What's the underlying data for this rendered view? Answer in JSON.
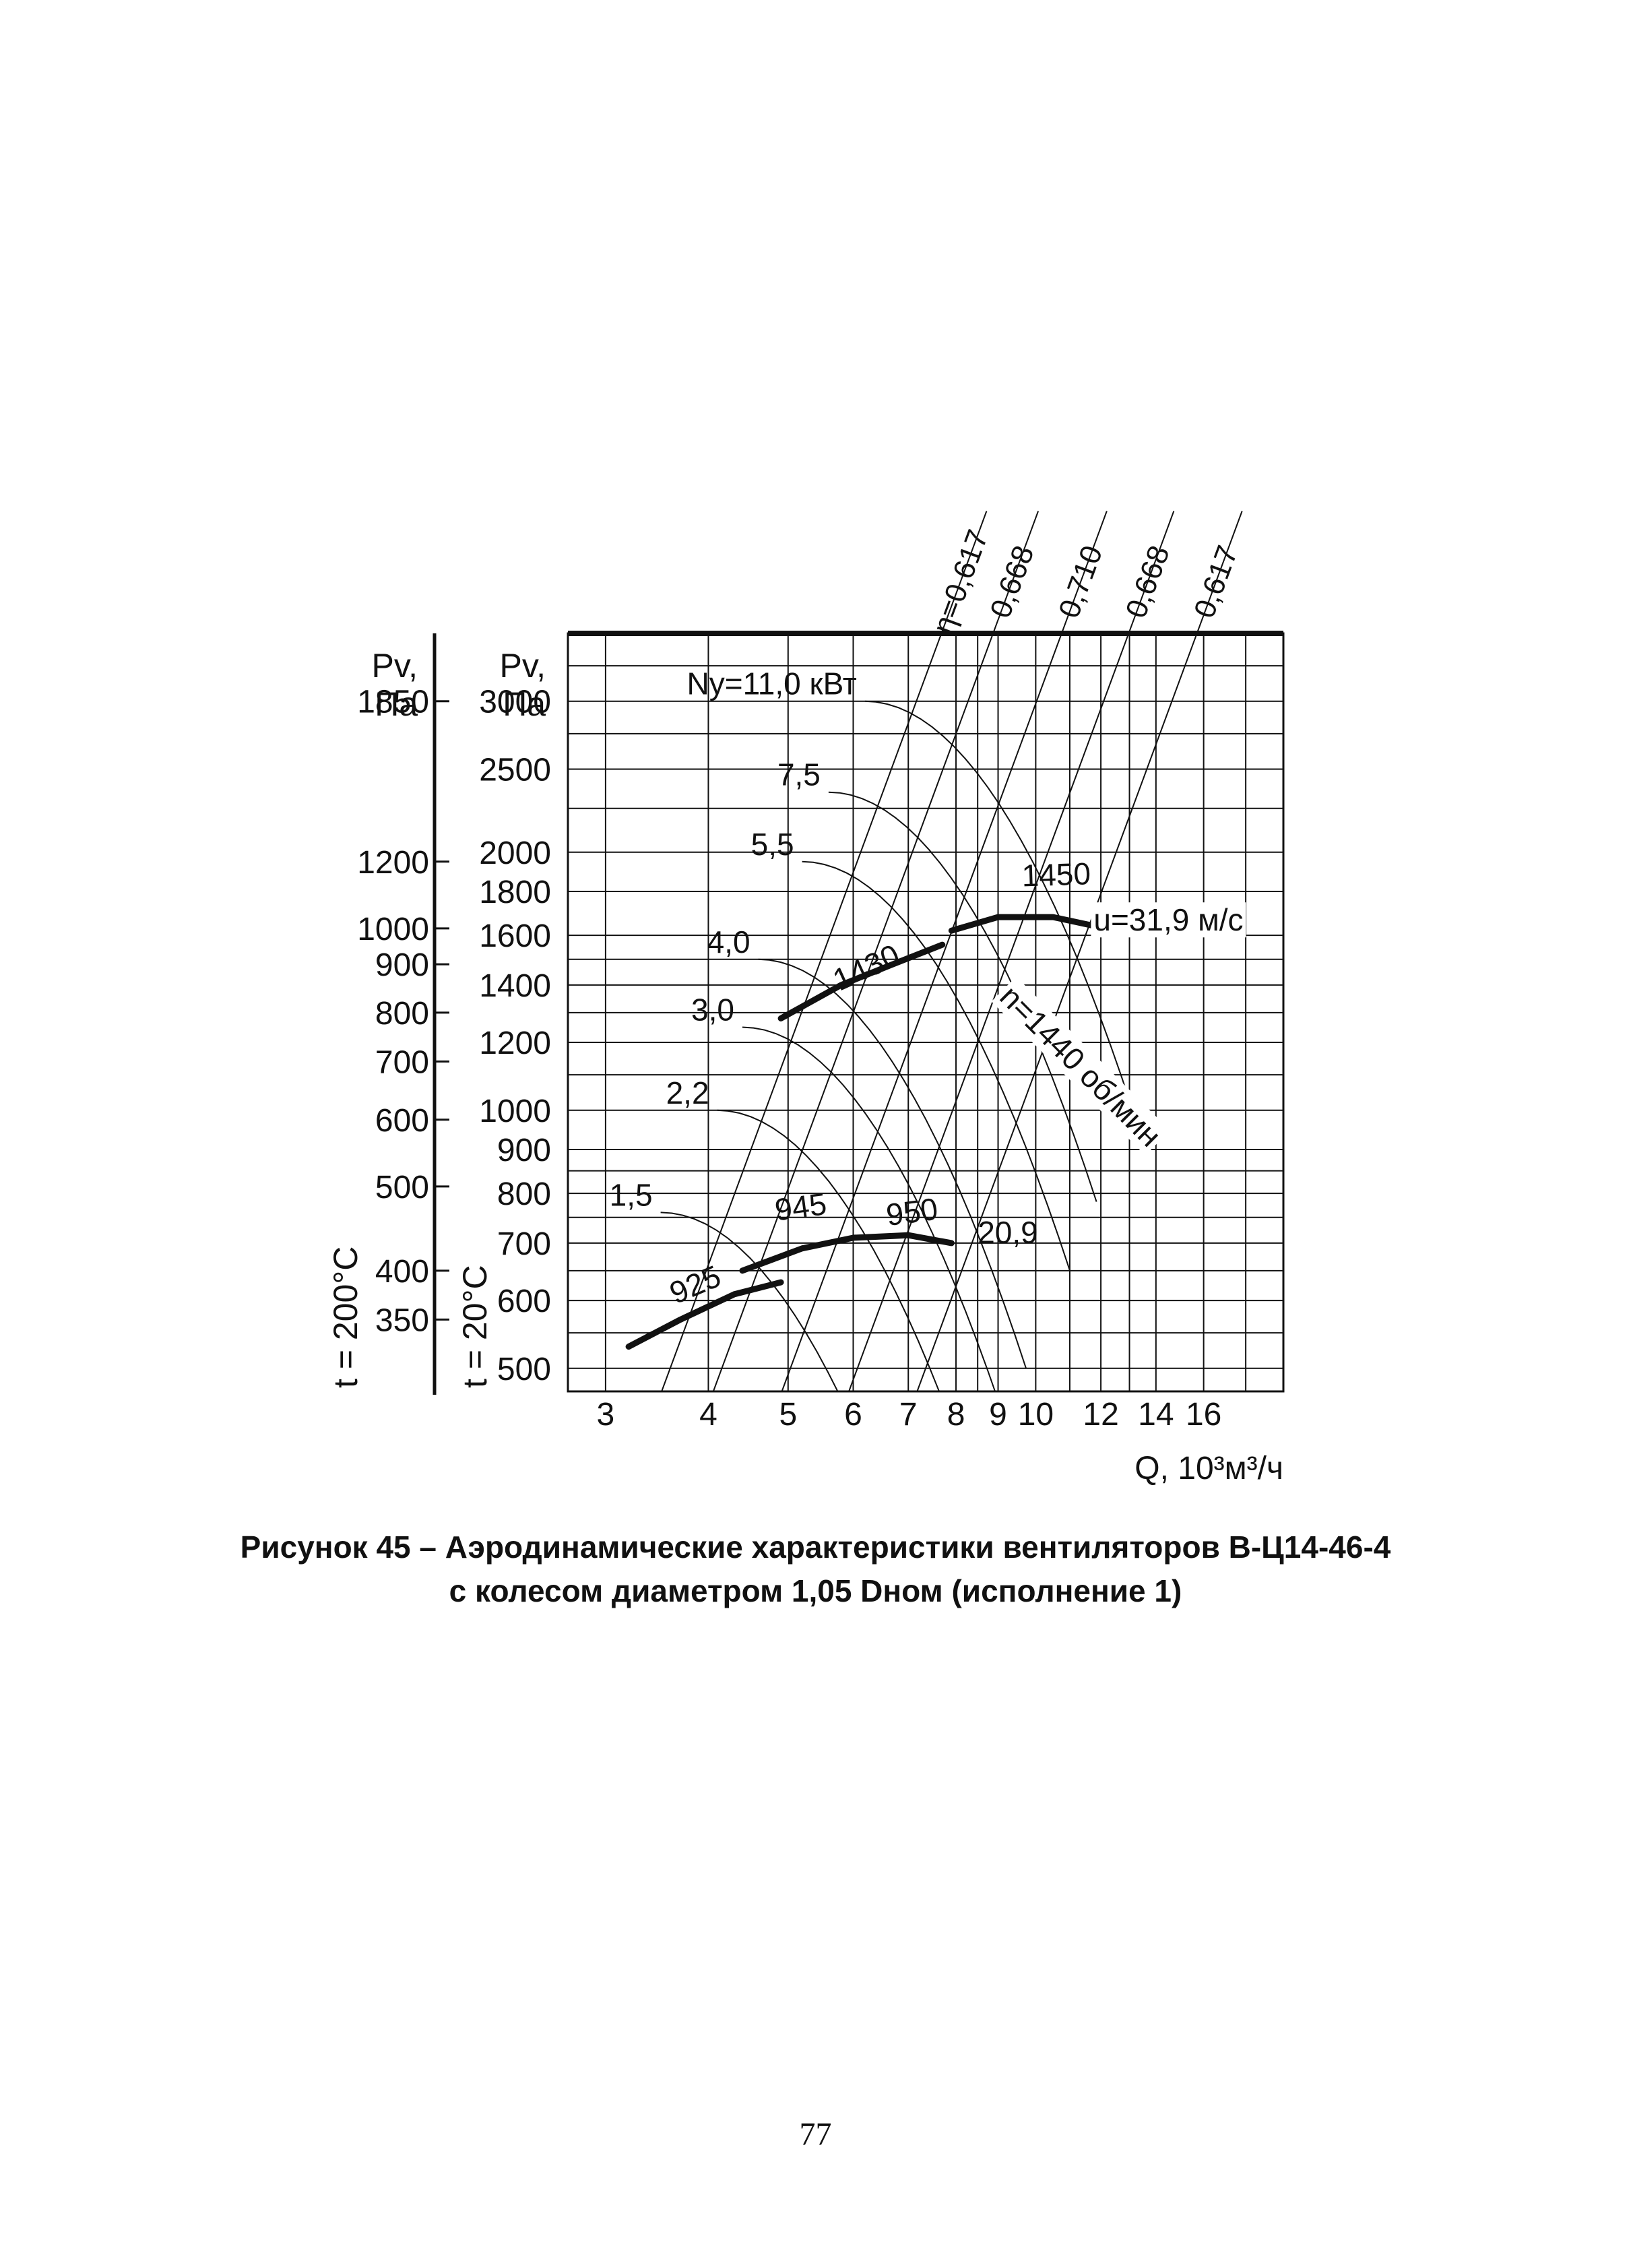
{
  "caption": {
    "line1": "Рисунок 45 – Аэродинамические характеристики вентиляторов В-Ц14-46-4",
    "line2": "с колесом диаметром 1,05 Dном (исполнение 1)"
  },
  "page_number": "77",
  "chart_data": {
    "type": "line",
    "xlabel": "Q, 10³м³/ч",
    "x_scale": "log",
    "y_scale": "log",
    "xlim": [
      2.7,
      20
    ],
    "ylim": [
      470,
      3600
    ],
    "x_ticks": [
      3,
      4,
      5,
      6,
      7,
      8,
      9,
      10,
      12,
      14,
      16
    ],
    "y_axis_20C": {
      "header": [
        "Pv,",
        "Па"
      ],
      "temp_label": "t = 20°C",
      "ticks": [
        500,
        600,
        700,
        800,
        900,
        1000,
        1200,
        1400,
        1600,
        1800,
        2000,
        2500,
        3000
      ]
    },
    "y_axis_200C": {
      "header": [
        "Pv,",
        "Па"
      ],
      "temp_label": "t = 200°C",
      "ticks": [
        {
          "label": "1850",
          "at": 3000
        },
        {
          "label": "1200",
          "at": 1950
        },
        {
          "label": "1000",
          "at": 1630
        },
        {
          "label": "900",
          "at": 1480
        },
        {
          "label": "800",
          "at": 1300
        },
        {
          "label": "700",
          "at": 1140
        },
        {
          "label": "600",
          "at": 975
        },
        {
          "label": "500",
          "at": 815
        },
        {
          "label": "400",
          "at": 650
        },
        {
          "label": "350",
          "at": 570
        }
      ]
    },
    "series": [
      {
        "name": "n=1440 об/мин",
        "points": [
          [
            4.9,
            1280
          ],
          [
            5.8,
            1400
          ],
          [
            6.7,
            1480
          ],
          [
            7.7,
            1560
          ]
        ],
        "labels": [
          {
            "text": "1430",
            "q": 6.3,
            "p": 1430
          }
        ]
      },
      {
        "name": "u=31,9 м/с",
        "points": [
          [
            7.9,
            1620
          ],
          [
            9.0,
            1680
          ],
          [
            10.5,
            1680
          ],
          [
            11.8,
            1640
          ]
        ],
        "labels": [
          {
            "text": "1450",
            "q": 10.6,
            "p": 1830
          }
        ]
      },
      {
        "name": "",
        "points": [
          [
            3.2,
            530
          ],
          [
            3.7,
            570
          ],
          [
            4.3,
            610
          ],
          [
            4.9,
            630
          ]
        ],
        "labels": [
          {
            "text": "925",
            "q": 3.9,
            "p": 610
          }
        ]
      },
      {
        "name": "",
        "points": [
          [
            4.4,
            650
          ],
          [
            5.2,
            690
          ],
          [
            6.0,
            710
          ],
          [
            7.0,
            715
          ],
          [
            7.9,
            700
          ]
        ],
        "labels": [
          {
            "text": "945",
            "q": 5.2,
            "p": 750
          },
          {
            "text": "950",
            "q": 7.1,
            "p": 740
          }
        ]
      }
    ],
    "efficiency_lines": [
      {
        "label": "η=0,617",
        "q": 4.5
      },
      {
        "label": "0,668",
        "q": 5.2
      },
      {
        "label": "0,710",
        "q": 6.3
      },
      {
        "label": "0,668",
        "q": 7.6
      },
      {
        "label": "0,617",
        "q": 9.2
      }
    ],
    "power_curves": [
      {
        "label": "Nу=11,0 кВт",
        "q": 6.2,
        "p": 3000
      },
      {
        "label": "7,5",
        "q": 5.6,
        "p": 2350
      },
      {
        "label": "5,5",
        "q": 5.2,
        "p": 1950
      },
      {
        "label": "4,0",
        "q": 4.6,
        "p": 1500
      },
      {
        "label": "3,0",
        "q": 4.4,
        "p": 1250
      },
      {
        "label": "2,2",
        "q": 4.1,
        "p": 1000
      },
      {
        "label": "1,5",
        "q": 3.5,
        "p": 760
      }
    ],
    "annotations": [
      {
        "text": "u=31,9 м/с",
        "q": 14.5,
        "p": 1620
      },
      {
        "text": "n=1440 об/мин",
        "q": 9.0,
        "p": 1350
      },
      {
        "text": "20,9",
        "q": 8.5,
        "p": 700
      }
    ],
    "grid": true
  },
  "colors": {
    "ink": "#111111",
    "paper": "#ffffff"
  }
}
